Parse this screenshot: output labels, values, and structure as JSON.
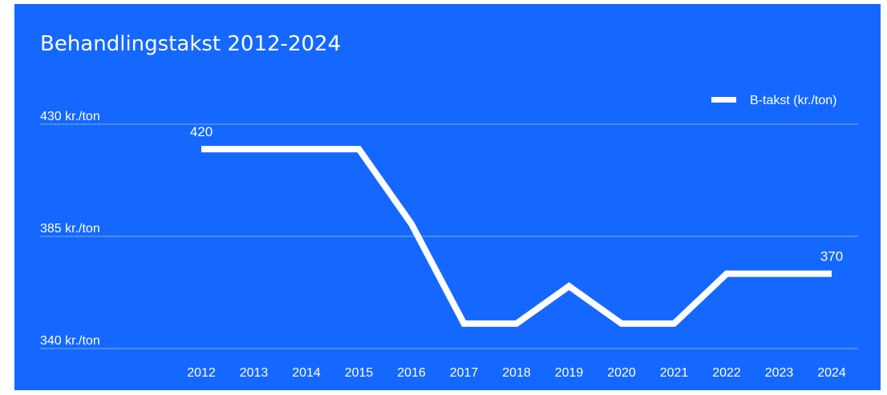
{
  "colors": {
    "background": "#1468ff",
    "line": "#ffffff",
    "text": "#ffffff"
  },
  "chart_data": {
    "type": "line",
    "title": "Behandlingstakst 2012-2024",
    "categories": [
      "2012",
      "2013",
      "2014",
      "2015",
      "2016",
      "2017",
      "2018",
      "2019",
      "2020",
      "2021",
      "2022",
      "2023",
      "2024"
    ],
    "series": [
      {
        "name": "B-takst (kr./ton)",
        "values": [
          420,
          420,
          420,
          420,
          390,
          350,
          350,
          365,
          350,
          350,
          370,
          370,
          370
        ]
      }
    ],
    "ylim": [
      340,
      430
    ],
    "yticks": [
      {
        "value": 430,
        "label": "430 kr./ton"
      },
      {
        "value": 385,
        "label": "385 kr./ton"
      },
      {
        "value": 340,
        "label": "340 kr./ton"
      }
    ],
    "data_labels": [
      {
        "index": 0,
        "text": "420"
      },
      {
        "index": 12,
        "text": "370"
      }
    ],
    "legend_position": "top-right",
    "grid": true
  }
}
